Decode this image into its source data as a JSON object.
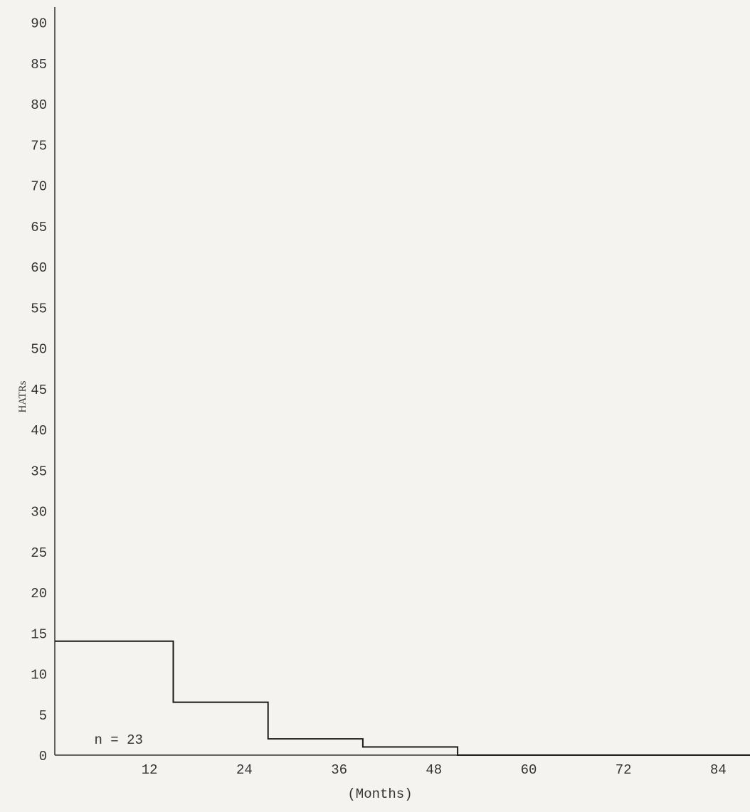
{
  "chart_data": {
    "type": "line",
    "step": true,
    "title": "",
    "xlabel": "(Months)",
    "ylabel": "HATRs",
    "xlim": [
      0,
      90
    ],
    "ylim": [
      0,
      90
    ],
    "xticks": [
      12,
      24,
      36,
      48,
      60,
      72,
      84
    ],
    "yticks": [
      0,
      5,
      10,
      15,
      20,
      25,
      30,
      35,
      40,
      45,
      50,
      55,
      60,
      65,
      70,
      75,
      80,
      85,
      90
    ],
    "grid": false,
    "series": [
      {
        "x": [
          0,
          15,
          15,
          27,
          27,
          39,
          39,
          51,
          51,
          90
        ],
        "y": [
          14,
          14,
          6.5,
          6.5,
          2,
          2,
          1,
          1,
          0,
          0
        ]
      }
    ],
    "annotations": [
      {
        "text": "n = 23",
        "x": 5,
        "y": 2
      }
    ],
    "colors": {
      "line": "#1a1a1a",
      "axis": "#333333",
      "text": "#333333",
      "background": "#f4f3ef"
    }
  }
}
